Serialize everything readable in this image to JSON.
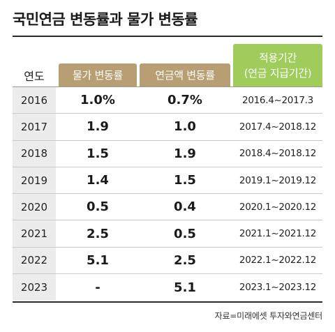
{
  "title": "국민연금 변동률과 물가 변동률",
  "headers": {
    "year": "연도",
    "price_change": "물가 변동률",
    "pension_change": "연금액 변동률",
    "period_line1": "적용기간",
    "period_line2": "(연금 지급기간)"
  },
  "rows": [
    {
      "year": "2016",
      "price": "1.0%",
      "pension": "0.7%",
      "period": "2016.4~2017.3"
    },
    {
      "year": "2017",
      "price": "1.9",
      "pension": "1.0",
      "period": "2017.4~2018.12"
    },
    {
      "year": "2018",
      "price": "1.5",
      "pension": "1.9",
      "period": "2018.4~2018.12"
    },
    {
      "year": "2019",
      "price": "1.4",
      "pension": "1.5",
      "period": "2019.1~2019.12"
    },
    {
      "year": "2020",
      "price": "0.5",
      "pension": "0.4",
      "period": "2020.1~2020.12"
    },
    {
      "year": "2021",
      "price": "2.5",
      "pension": "0.5",
      "period": "2021.1~2021.12"
    },
    {
      "year": "2022",
      "price": "5.1",
      "pension": "2.5",
      "period": "2022.1~2022.12"
    },
    {
      "year": "2023",
      "price": "-",
      "pension": "5.1",
      "period": "2023.1~2023.12"
    }
  ],
  "source": "자료=미래에셋 투자와연금센터"
}
